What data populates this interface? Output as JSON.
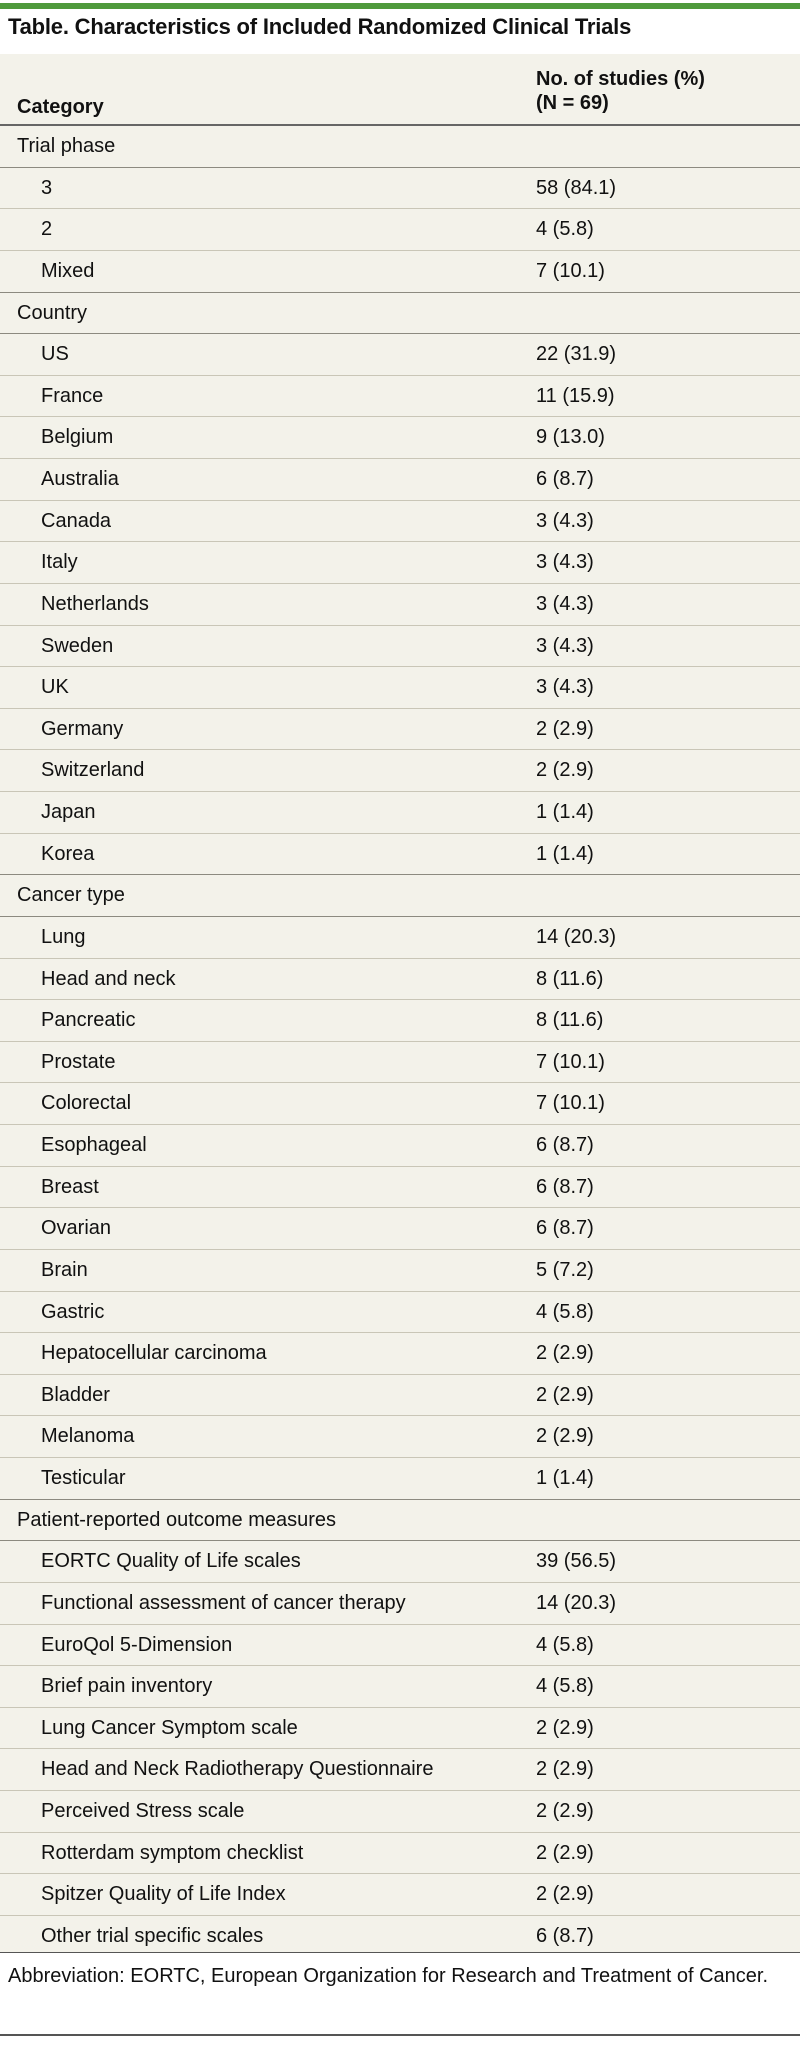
{
  "title": "Table. Characteristics of Included Randomized Clinical Trials",
  "header": {
    "category": "Category",
    "count_line1": "No. of studies (%)",
    "count_line2": "(N = 69)"
  },
  "rows": [
    {
      "label": "Trial phase",
      "value": "",
      "section": true
    },
    {
      "label": "3",
      "value": "58 (84.1)"
    },
    {
      "label": "2",
      "value": "4 (5.8)"
    },
    {
      "label": "Mixed",
      "value": "7 (10.1)"
    },
    {
      "label": "Country",
      "value": "",
      "section": true
    },
    {
      "label": "US",
      "value": "22 (31.9)"
    },
    {
      "label": "France",
      "value": "11 (15.9)"
    },
    {
      "label": "Belgium",
      "value": "9 (13.0)"
    },
    {
      "label": "Australia",
      "value": "6 (8.7)"
    },
    {
      "label": "Canada",
      "value": "3 (4.3)"
    },
    {
      "label": "Italy",
      "value": "3 (4.3)"
    },
    {
      "label": "Netherlands",
      "value": "3 (4.3)"
    },
    {
      "label": "Sweden",
      "value": "3 (4.3)"
    },
    {
      "label": "UK",
      "value": "3 (4.3)"
    },
    {
      "label": "Germany",
      "value": "2 (2.9)"
    },
    {
      "label": "Switzerland",
      "value": "2 (2.9)"
    },
    {
      "label": "Japan",
      "value": "1 (1.4)"
    },
    {
      "label": "Korea",
      "value": "1 (1.4)"
    },
    {
      "label": "Cancer type",
      "value": "",
      "section": true
    },
    {
      "label": "Lung",
      "value": "14 (20.3)"
    },
    {
      "label": "Head and neck",
      "value": "8 (11.6)"
    },
    {
      "label": "Pancreatic",
      "value": "8 (11.6)"
    },
    {
      "label": "Prostate",
      "value": "7 (10.1)"
    },
    {
      "label": "Colorectal",
      "value": "7 (10.1)"
    },
    {
      "label": "Esophageal",
      "value": "6 (8.7)"
    },
    {
      "label": "Breast",
      "value": "6 (8.7)"
    },
    {
      "label": "Ovarian",
      "value": "6 (8.7)"
    },
    {
      "label": "Brain",
      "value": "5 (7.2)"
    },
    {
      "label": "Gastric",
      "value": "4 (5.8)"
    },
    {
      "label": "Hepatocellular carcinoma",
      "value": "2 (2.9)"
    },
    {
      "label": "Bladder",
      "value": "2 (2.9)"
    },
    {
      "label": "Melanoma",
      "value": "2 (2.9)"
    },
    {
      "label": "Testicular",
      "value": "1 (1.4)"
    },
    {
      "label": "Patient-reported outcome measures",
      "value": "",
      "section": true
    },
    {
      "label": "EORTC Quality of Life scales",
      "value": "39 (56.5)"
    },
    {
      "label": "Functional assessment of cancer therapy",
      "value": "14 (20.3)"
    },
    {
      "label": "EuroQol 5-Dimension",
      "value": "4 (5.8)"
    },
    {
      "label": "Brief pain inventory",
      "value": "4 (5.8)"
    },
    {
      "label": "Lung Cancer Symptom scale",
      "value": "2 (2.9)"
    },
    {
      "label": "Head and Neck Radiotherapy Questionnaire",
      "value": "2 (2.9)"
    },
    {
      "label": "Perceived Stress scale",
      "value": "2 (2.9)"
    },
    {
      "label": "Rotterdam symptom checklist",
      "value": "2 (2.9)"
    },
    {
      "label": "Spitzer Quality of Life Index",
      "value": "2 (2.9)"
    },
    {
      "label": "Other trial specific scales",
      "value": "6 (8.7)"
    }
  ],
  "footnote": "Abbreviation: EORTC, European Organization for Research and Treatment of Cancer.",
  "colors": {
    "accent_rule": "#4f9a3c",
    "panel_bg": "#f3f2ea"
  }
}
